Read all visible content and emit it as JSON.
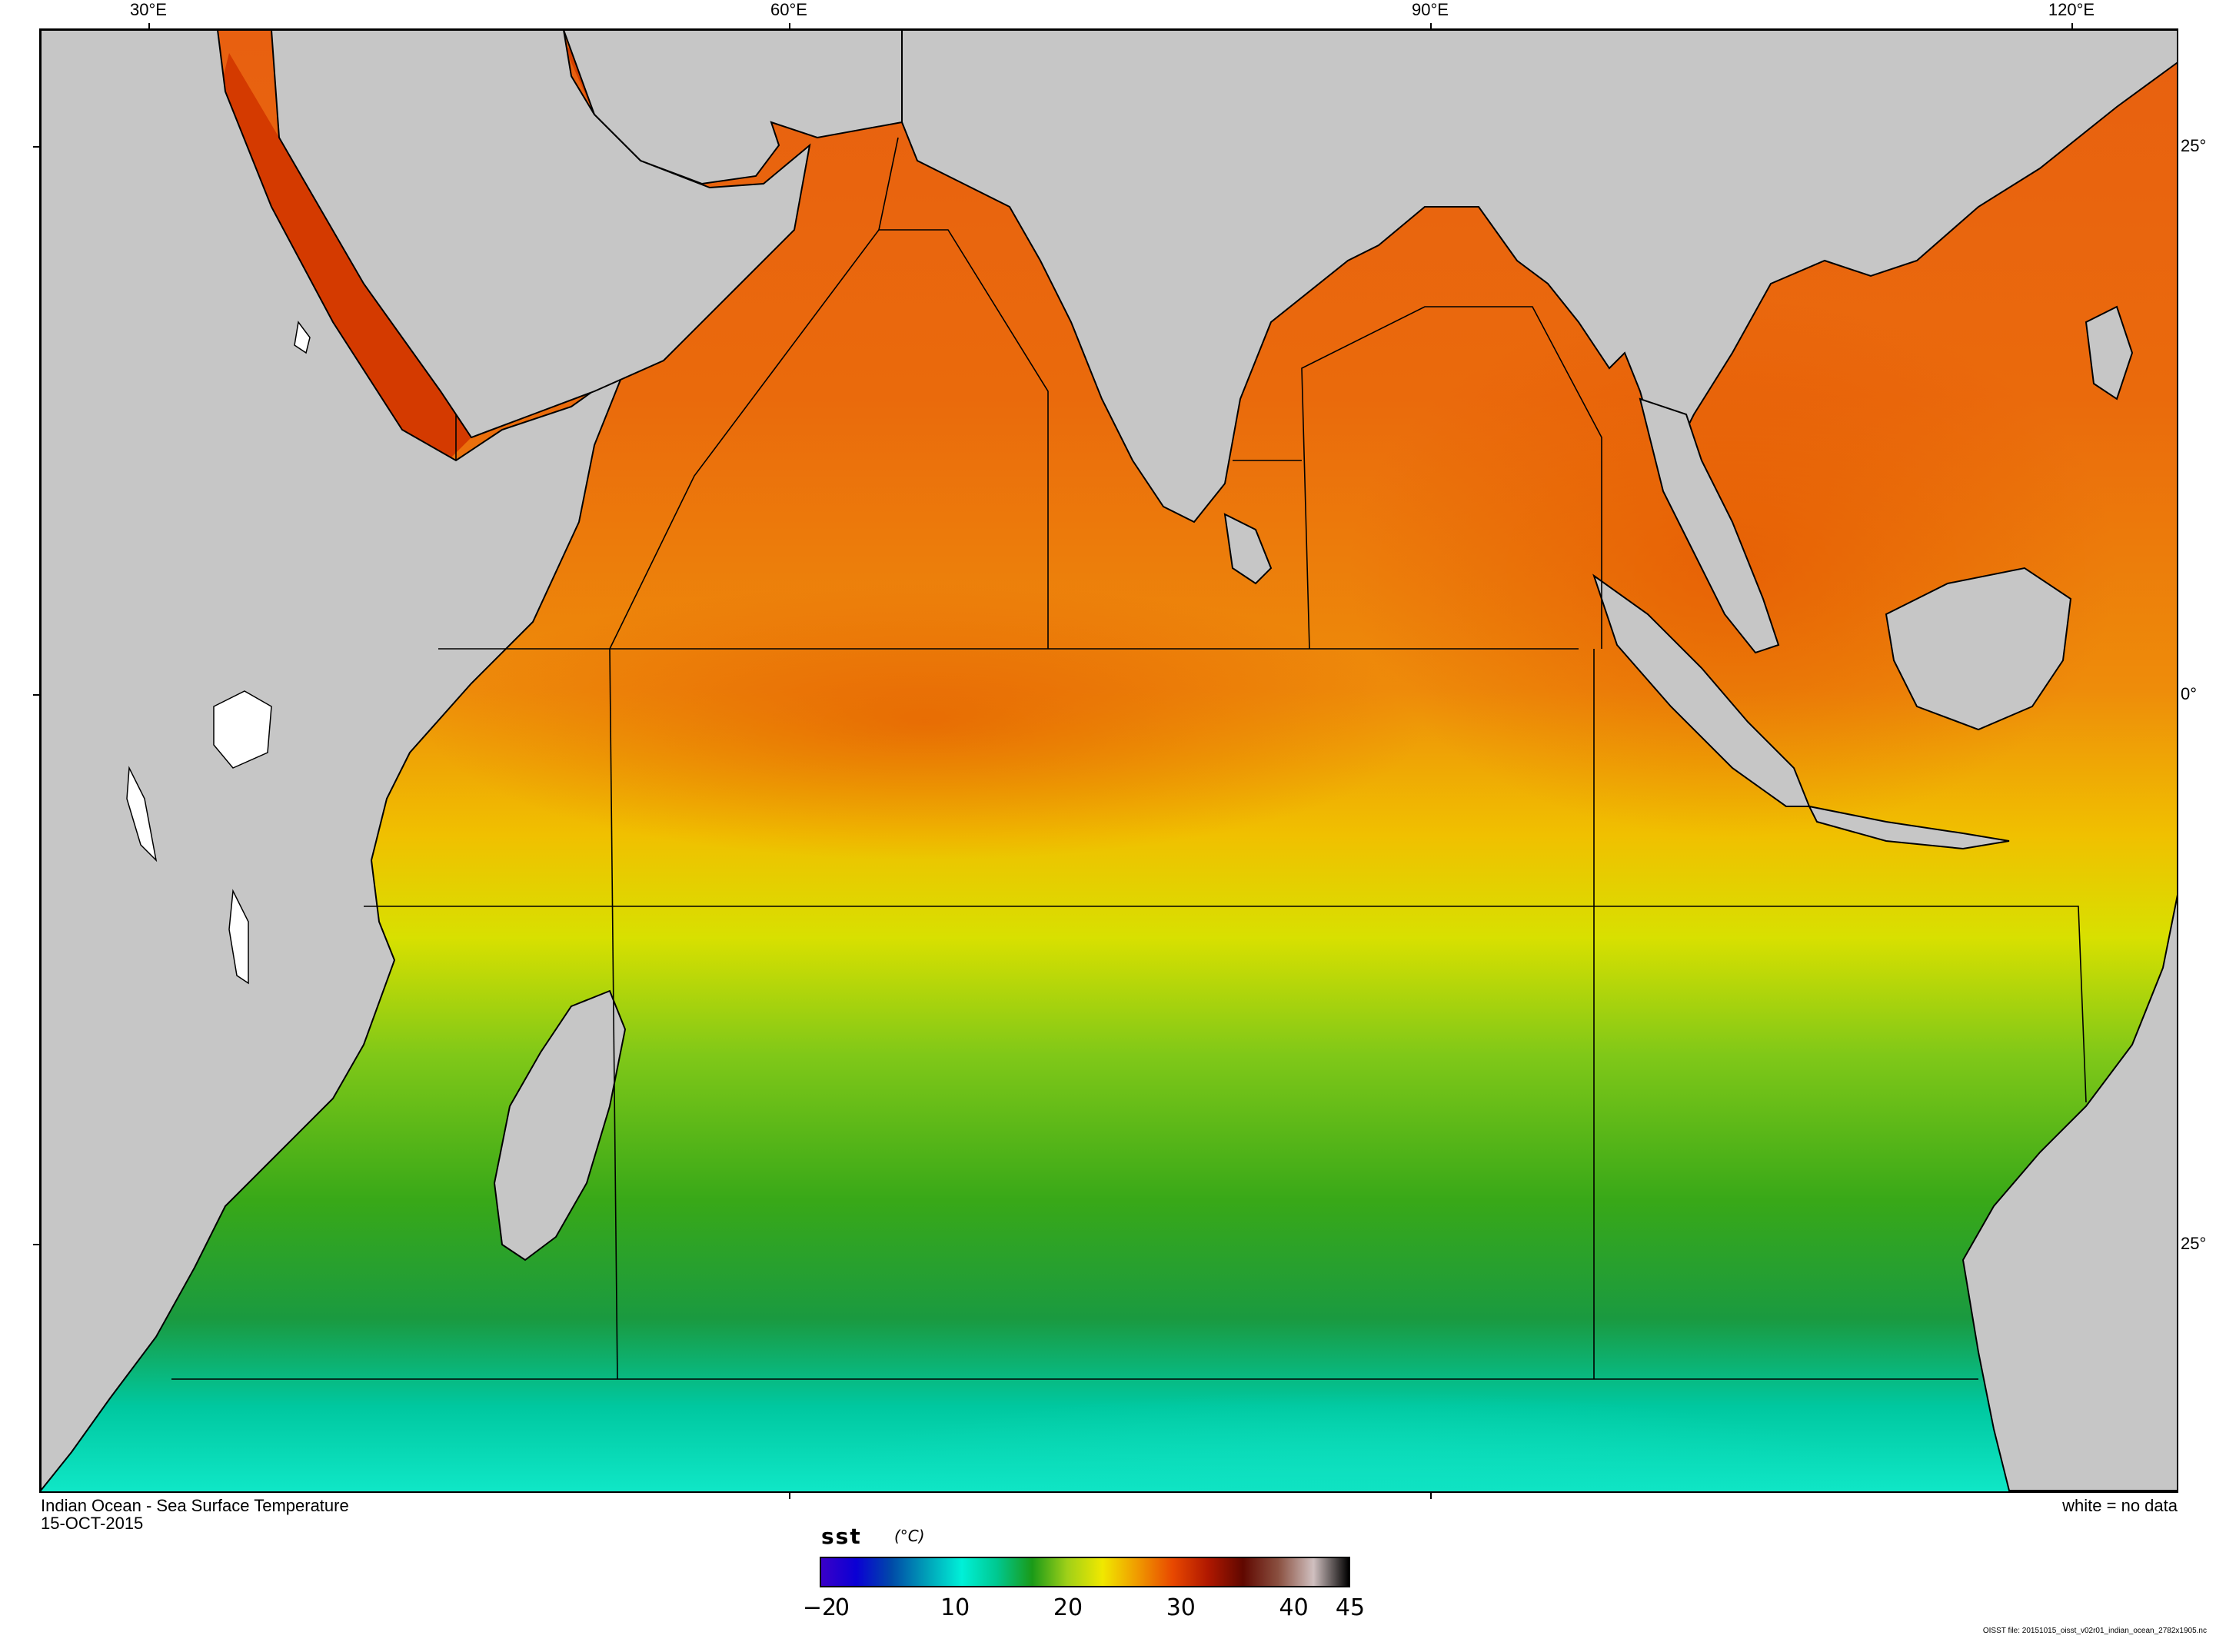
{
  "map": {
    "title": "Indian Ocean - Sea Surface Temperature",
    "date": "15-OCT-2015",
    "no_data_note": "white = no data",
    "source_file": "OISST file: 20151015_oisst_v02r01_indian_ocean_2782x1905.nc",
    "longitude_ticks": [
      "30°E",
      "60°E",
      "90°E",
      "120°E"
    ],
    "latitude_ticks": [
      "25°",
      "0°",
      "25°"
    ],
    "land_color": "#c6c6c6",
    "no_data_color": "#ffffff"
  },
  "colorbar": {
    "variable": "sst",
    "units": "(°C)",
    "range": [
      -2,
      45
    ],
    "tick_labels": [
      "−2",
      "0",
      "10",
      "20",
      "30",
      "40",
      "45"
    ],
    "tick_values": [
      -2,
      0,
      10,
      20,
      30,
      40,
      45
    ],
    "colors": [
      "#3a00c8",
      "#0a00d4",
      "#004aa8",
      "#00a0b8",
      "#00f0d8",
      "#00c890",
      "#1a9a18",
      "#a0d018",
      "#f0e800",
      "#f09a00",
      "#e84800",
      "#b01800",
      "#600800",
      "#8a5040",
      "#d0c0c0",
      "#000000"
    ]
  }
}
